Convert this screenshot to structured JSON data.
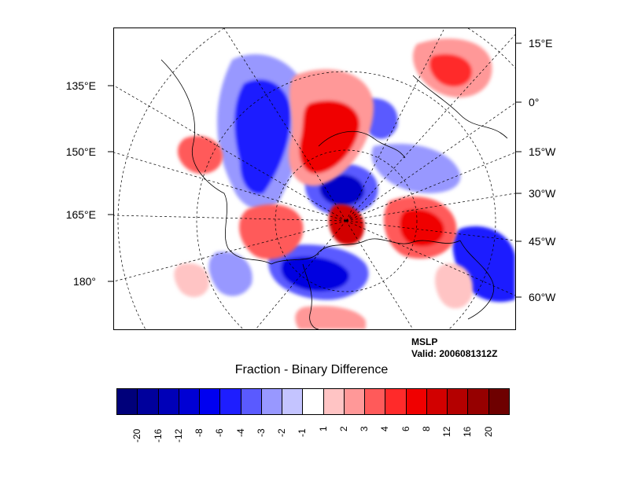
{
  "map": {
    "lon_labels_left": [
      "135°E",
      "150°E",
      "165°E",
      "180°"
    ],
    "lon_labels_right": [
      "15°E",
      "0°",
      "15°W",
      "30°W",
      "45°W",
      "60°W"
    ]
  },
  "annotation": {
    "field": "MSLP",
    "valid": "Valid: 2006081312Z"
  },
  "colorbar": {
    "title": "Fraction - Binary Difference",
    "levels": [
      "-20",
      "-16",
      "-12",
      "-8",
      "-6",
      "-4",
      "-3",
      "-2",
      "-1",
      "1",
      "2",
      "3",
      "4",
      "6",
      "8",
      "12",
      "16",
      "20"
    ],
    "colors": [
      "#00007a",
      "#00009c",
      "#0000b8",
      "#0000d4",
      "#0000f0",
      "#1e1eff",
      "#5a5aff",
      "#9898ff",
      "#c4c4ff",
      "#ffffff",
      "#ffc4c4",
      "#ff9898",
      "#ff5a5a",
      "#ff2a2a",
      "#f00000",
      "#d20000",
      "#b40000",
      "#960000",
      "#6e0000"
    ]
  }
}
